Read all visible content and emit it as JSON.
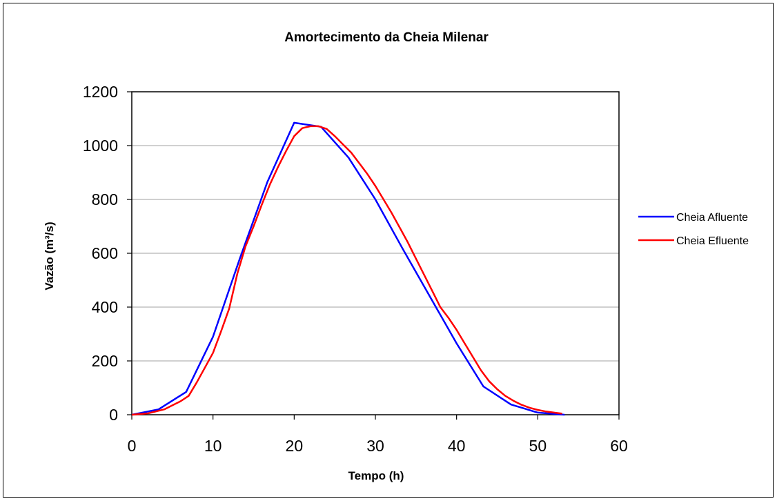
{
  "chart_data": {
    "type": "line",
    "title": "Amortecimento da Cheia Milenar",
    "xlabel": "Tempo (h)",
    "ylabel": "Vazão (m³/s)",
    "xlim": [
      0,
      60
    ],
    "ylim": [
      0,
      1200
    ],
    "xticks": [
      0,
      10,
      20,
      30,
      40,
      50,
      60
    ],
    "yticks": [
      0,
      200,
      400,
      600,
      800,
      1000,
      1200
    ],
    "grid": "horizontal",
    "legend_position": "right",
    "series": [
      {
        "name": "Cheia Afluente",
        "color": "#0000ff",
        "x": [
          0,
          3.3,
          6.7,
          10,
          13.3,
          16.7,
          20,
          23.3,
          26.7,
          30,
          33.3,
          36.7,
          40,
          43.3,
          46.7,
          50,
          53.3
        ],
        "y": [
          0,
          20,
          85,
          290,
          580,
          865,
          1085,
          1070,
          955,
          800,
          620,
          440,
          265,
          105,
          38,
          8,
          0
        ]
      },
      {
        "name": "Cheia Efluente",
        "color": "#ff0000",
        "x": [
          0,
          2,
          4,
          6,
          7,
          8,
          9,
          10,
          11,
          12,
          13,
          14,
          15,
          16,
          17,
          18,
          19,
          20,
          21,
          22,
          23,
          24,
          25,
          26,
          27,
          28,
          29,
          30,
          31,
          32,
          33,
          34,
          35,
          36,
          37,
          38,
          39,
          40,
          41,
          42,
          43,
          44,
          45,
          46,
          47,
          48,
          49,
          50,
          51,
          52,
          53
        ],
        "y": [
          0,
          5,
          20,
          50,
          70,
          120,
          175,
          230,
          310,
          395,
          525,
          625,
          700,
          780,
          855,
          920,
          980,
          1035,
          1065,
          1072,
          1072,
          1062,
          1035,
          1005,
          975,
          935,
          895,
          850,
          800,
          750,
          695,
          640,
          580,
          520,
          460,
          400,
          360,
          315,
          265,
          215,
          165,
          125,
          95,
          70,
          52,
          37,
          26,
          18,
          12,
          8,
          4
        ]
      }
    ]
  }
}
